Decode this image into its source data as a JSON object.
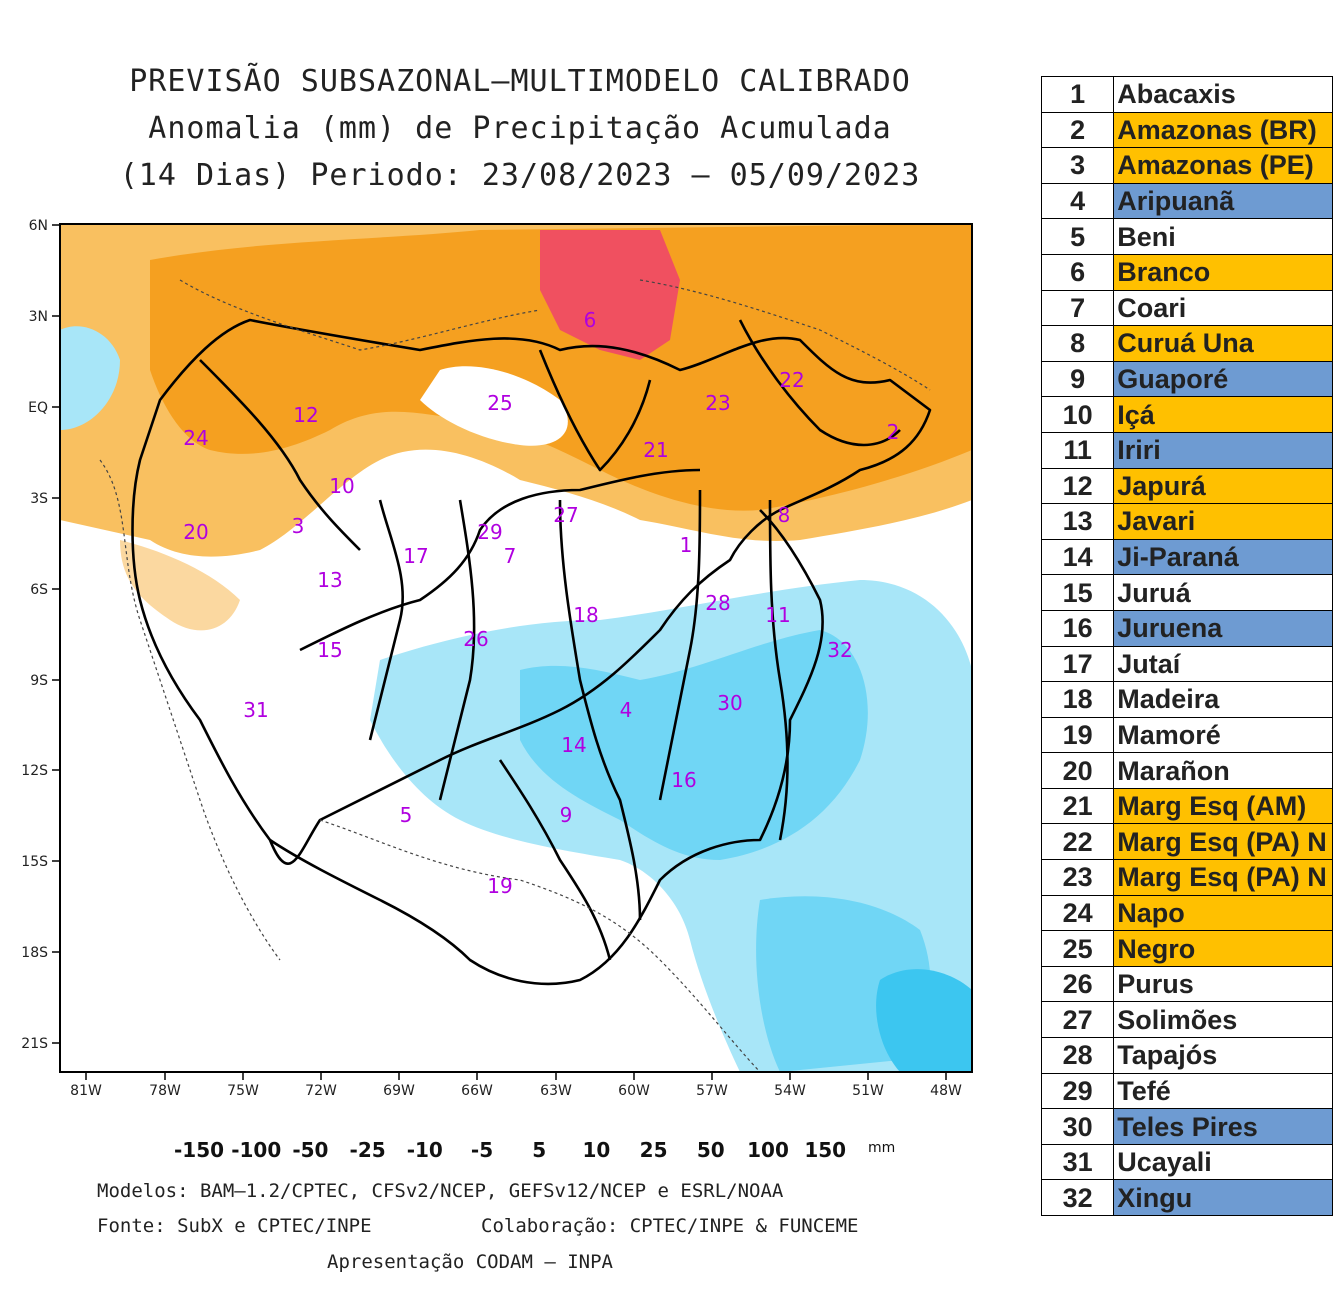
{
  "title": {
    "line1": "PREVISÃO SUBSAZONAL–MULTIMODELO CALIBRADO",
    "line2": "Anomalia (mm) de Precipitação Acumulada",
    "line3": "(14 Dias) Periodo: 23/08/2023 – 05/09/2023"
  },
  "axes": {
    "lat_ticks": [
      "6N",
      "3N",
      "EQ",
      "3S",
      "6S",
      "9S",
      "12S",
      "15S",
      "18S",
      "21S"
    ],
    "lon_ticks": [
      "81W",
      "78W",
      "75W",
      "72W",
      "69W",
      "66W",
      "63W",
      "60W",
      "57W",
      "54W",
      "51W",
      "48W"
    ]
  },
  "basin_labels": [
    "1",
    "2",
    "3",
    "4",
    "5",
    "6",
    "7",
    "8",
    "9",
    "10",
    "11",
    "12",
    "13",
    "14",
    "15",
    "16",
    "17",
    "18",
    "19",
    "20",
    "21",
    "22",
    "23",
    "24",
    "25",
    "26",
    "27",
    "28",
    "29",
    "30",
    "31",
    "32"
  ],
  "colorbar": {
    "colors": [
      "#b4000a",
      "#e8202a",
      "#f55a50",
      "#f5a020",
      "#f7b035",
      "#f9c060",
      "#fbd8a0",
      "#ffffff",
      "#a8e6f8",
      "#70d6f5",
      "#3cc6f0",
      "#00a8e0",
      "#0080b8",
      "#005f90",
      "#003f68"
    ],
    "labels": [
      "-150",
      "-100",
      "-50",
      "-25",
      "-10",
      "-5",
      "5",
      "10",
      "25",
      "50",
      "100",
      "150"
    ],
    "unit": "mm"
  },
  "footer": {
    "models": "Modelos: BAM–1.2/CPTEC, CFSv2/NCEP, GEFSv12/NCEP e ESRL/NOAA",
    "source": "Fonte: SubX e CPTEC/INPE",
    "collab": "Colaboração: CPTEC/INPE & FUNCEME",
    "presentation": "Apresentação CODAM – INPA"
  },
  "basins": [
    {
      "num": "1",
      "name": "Abacaxis",
      "color": "#ffffff"
    },
    {
      "num": "2",
      "name": "Amazonas (BR)",
      "color": "#ffc000"
    },
    {
      "num": "3",
      "name": "Amazonas (PE)",
      "color": "#ffc000"
    },
    {
      "num": "4",
      "name": "Aripuanã",
      "color": "#6e9bd2"
    },
    {
      "num": "5",
      "name": "Beni",
      "color": "#ffffff"
    },
    {
      "num": "6",
      "name": "Branco",
      "color": "#ffc000"
    },
    {
      "num": "7",
      "name": "Coari",
      "color": "#ffffff"
    },
    {
      "num": "8",
      "name": "Curuá Una",
      "color": "#ffc000"
    },
    {
      "num": "9",
      "name": "Guaporé",
      "color": "#6e9bd2"
    },
    {
      "num": "10",
      "name": "Içá",
      "color": "#ffc000"
    },
    {
      "num": "11",
      "name": "Iriri",
      "color": "#6e9bd2"
    },
    {
      "num": "12",
      "name": "Japurá",
      "color": "#ffc000"
    },
    {
      "num": "13",
      "name": "Javari",
      "color": "#ffc000"
    },
    {
      "num": "14",
      "name": "Ji-Paraná",
      "color": "#6e9bd2"
    },
    {
      "num": "15",
      "name": "Juruá",
      "color": "#ffffff"
    },
    {
      "num": "16",
      "name": "Juruena",
      "color": "#6e9bd2"
    },
    {
      "num": "17",
      "name": "Jutaí",
      "color": "#ffffff"
    },
    {
      "num": "18",
      "name": "Madeira",
      "color": "#ffffff"
    },
    {
      "num": "19",
      "name": "Mamoré",
      "color": "#ffffff"
    },
    {
      "num": "20",
      "name": "Marañon",
      "color": "#ffffff"
    },
    {
      "num": "21",
      "name": "Marg Esq (AM)",
      "color": "#ffc000"
    },
    {
      "num": "22",
      "name": "Marg Esq (PA) N",
      "color": "#ffc000"
    },
    {
      "num": "23",
      "name": "Marg Esq (PA) N",
      "color": "#ffc000"
    },
    {
      "num": "24",
      "name": "Napo",
      "color": "#ffc000"
    },
    {
      "num": "25",
      "name": "Negro",
      "color": "#ffc000"
    },
    {
      "num": "26",
      "name": "Purus",
      "color": "#ffffff"
    },
    {
      "num": "27",
      "name": "Solimões",
      "color": "#ffffff"
    },
    {
      "num": "28",
      "name": "Tapajós",
      "color": "#ffffff"
    },
    {
      "num": "29",
      "name": "Tefé",
      "color": "#ffffff"
    },
    {
      "num": "30",
      "name": "Teles Pires",
      "color": "#6e9bd2"
    },
    {
      "num": "31",
      "name": "Ucayali",
      "color": "#ffffff"
    },
    {
      "num": "32",
      "name": "Xingu",
      "color": "#6e9bd2"
    }
  ]
}
